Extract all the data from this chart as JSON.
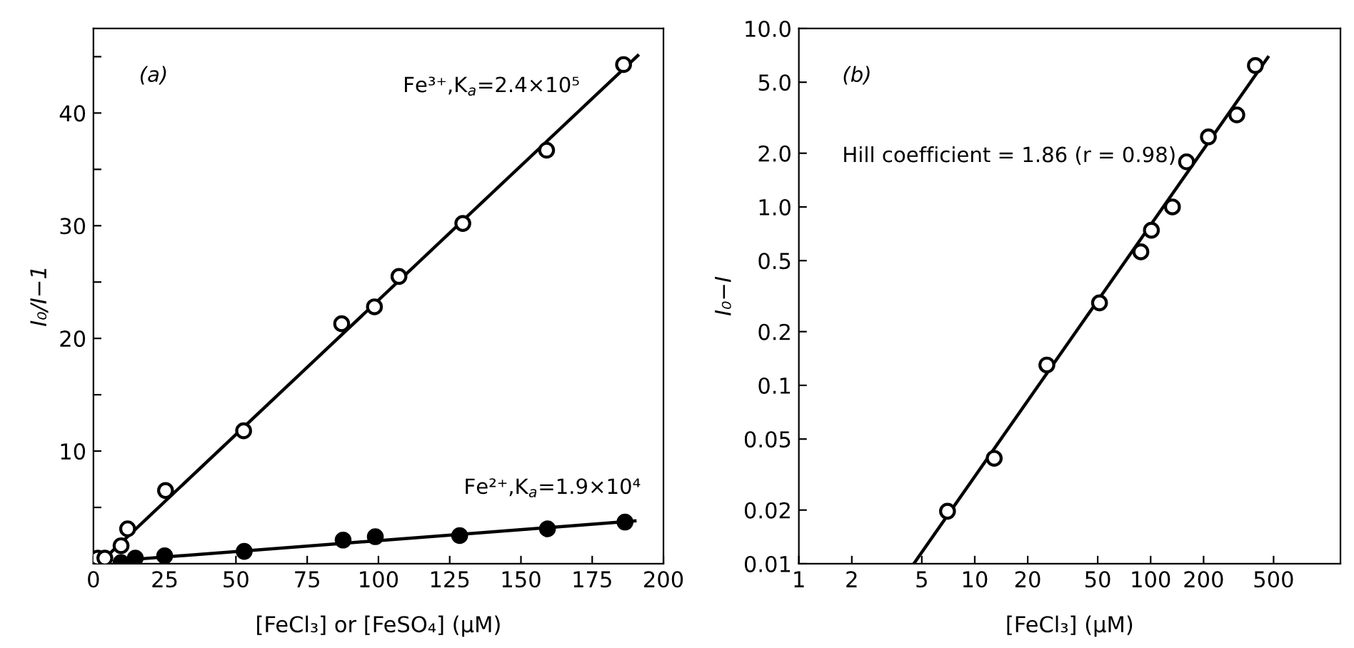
{
  "chart_data": [
    {
      "type": "scatter",
      "xlabel": "[FeCl₃] or [FeSO₄] (μM)",
      "ylabel": "I₀/I−1",
      "xlim": [
        0,
        200
      ],
      "ylim": [
        0,
        47.5
      ],
      "xticks": [
        0,
        25,
        50,
        75,
        100,
        125,
        150,
        175,
        200
      ],
      "yticks": [
        {
          "value": 5,
          "label": null
        },
        10,
        {
          "value": 15,
          "label": null
        },
        20,
        {
          "value": 25,
          "label": null
        },
        30,
        {
          "value": 35,
          "label": null
        },
        40,
        {
          "value": 45,
          "label": null
        }
      ],
      "marker": "circle",
      "grid": false,
      "legend": false,
      "annotations": [
        "(a)"
      ],
      "series": [
        {
          "name": "Fe³⁺,K$_{a}$=2.4×10⁵",
          "color": "#000000",
          "x": [
            1.5,
            4,
            9.7,
            12,
            25.3,
            52.7,
            87.1,
            98.6,
            107.2,
            129.6,
            159,
            186
          ],
          "values": [
            0.5,
            0.5,
            1.6,
            3.1,
            6.5,
            11.8,
            21.3,
            22.8,
            25.5,
            30.2,
            36.7,
            44.3
          ]
        },
        {
          "type": "line",
          "marker": "none",
          "color": "#000000",
          "x": [
            4,
            191
          ],
          "values": [
            0.5,
            45.1
          ]
        },
        {
          "name": "Fe²⁺,K$_{a}$=1.9×10⁴",
          "color": "#000000",
          "x": [
            9.7,
            14.7,
            25,
            52.9,
            87.6,
            98.9,
            128.5,
            159.3,
            186.5
          ],
          "values": [
            0.1,
            0.5,
            0.7,
            1.1,
            2.1,
            2.4,
            2.5,
            3.1,
            3.7
          ]
        },
        {
          "type": "line",
          "marker": "none",
          "color": "#000000",
          "x": [
            9.7,
            190
          ],
          "values": [
            0.3,
            3.8
          ]
        }
      ]
    },
    {
      "type": "scatter",
      "xlabel": "[FeCl₃] (μM)",
      "ylabel": "I₀−I",
      "log": "xy",
      "xlim": [
        1,
        1200
      ],
      "ylim": [
        0.01,
        10
      ],
      "xticks": [
        1,
        2,
        5,
        10,
        20,
        50,
        100,
        200,
        500
      ],
      "yticks": [
        0.01,
        0.02,
        0.05,
        0.1,
        0.2,
        0.5,
        {
          "value": 1,
          "label": "1.0"
        },
        {
          "value": 2,
          "label": "2.0"
        },
        {
          "value": 5,
          "label": "5.0"
        },
        {
          "value": 10,
          "label": "10.0"
        }
      ],
      "marker": "circle",
      "grid": false,
      "legend": false,
      "annotations": [
        "(b)",
        "Hill coefficient = 1.86 (r = 0.98)"
      ],
      "series": [
        {
          "color": "#000000",
          "x": [
            7.0,
            12.9,
            25.7,
            51.2,
            88,
            101,
            133,
            160,
            213,
            309,
            394
          ],
          "values": [
            0.0197,
            0.039,
            0.13,
            0.29,
            0.56,
            0.74,
            1.0,
            1.79,
            2.47,
            3.28,
            6.2
          ]
        },
        {
          "type": "line",
          "marker": "none",
          "color": "#000000",
          "x": [
            4.5,
            464
          ],
          "values": [
            0.01,
            6.9
          ]
        }
      ]
    }
  ]
}
